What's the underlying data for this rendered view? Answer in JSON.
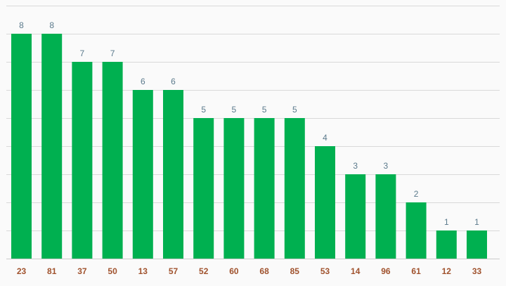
{
  "chart_data": {
    "type": "bar",
    "categories": [
      "23",
      "81",
      "37",
      "50",
      "13",
      "57",
      "52",
      "60",
      "68",
      "85",
      "53",
      "14",
      "96",
      "61",
      "12",
      "33"
    ],
    "values": [
      8,
      8,
      7,
      7,
      6,
      6,
      5,
      5,
      5,
      5,
      4,
      3,
      3,
      2,
      1,
      1
    ],
    "title": "",
    "xlabel": "",
    "ylabel": "",
    "ylim": [
      0,
      9
    ],
    "grid": true,
    "data_labels": true,
    "bar_color": "#00b050",
    "value_label_color": "#5b7a8c",
    "category_label_color": "#a0522d",
    "gridline_color": "#d9d9d9"
  }
}
